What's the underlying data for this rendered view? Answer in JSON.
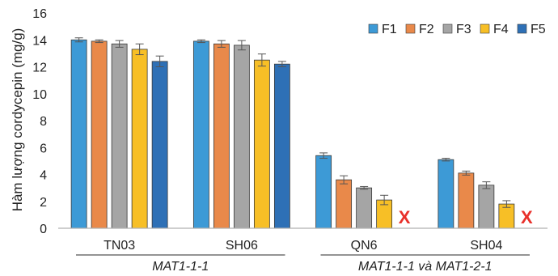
{
  "chart_data": {
    "type": "bar",
    "title": "",
    "xlabel": "",
    "ylabel": "Hàm lượng cordycepin (mg/g)",
    "ylim": [
      0,
      16
    ],
    "yticks": [
      0,
      2,
      4,
      6,
      8,
      10,
      12,
      14,
      16
    ],
    "grid": false,
    "legend_position": "top-right",
    "categories": [
      "TN03",
      "SH06",
      "QN6",
      "SH04"
    ],
    "groups": [
      {
        "label": "MAT1-1-1",
        "categories": [
          "TN03",
          "SH06"
        ]
      },
      {
        "label": "MAT1-1-1 và MAT1-2-1",
        "categories": [
          "QN6",
          "SH04"
        ]
      }
    ],
    "series": [
      {
        "name": "F1",
        "color": "#3d9ad6",
        "values": [
          14.0,
          13.9,
          5.4,
          5.1
        ],
        "errors": [
          0.15,
          0.1,
          0.2,
          0.1
        ]
      },
      {
        "name": "F2",
        "color": "#e9894a",
        "values": [
          13.9,
          13.7,
          3.6,
          4.1
        ],
        "errors": [
          0.1,
          0.25,
          0.3,
          0.15
        ]
      },
      {
        "name": "F3",
        "color": "#a5a5a5",
        "values": [
          13.7,
          13.6,
          3.0,
          3.2
        ],
        "errors": [
          0.25,
          0.35,
          0.1,
          0.25
        ]
      },
      {
        "name": "F4",
        "color": "#f7bf26",
        "values": [
          13.3,
          12.5,
          2.1,
          1.8
        ],
        "errors": [
          0.4,
          0.45,
          0.35,
          0.25
        ]
      },
      {
        "name": "F5",
        "color": "#2e70b6",
        "values": [
          12.4,
          12.2,
          null,
          null
        ],
        "errors": [
          0.4,
          0.2,
          null,
          null
        ]
      }
    ],
    "missing_marker": "X",
    "missing_marker_color": "#e8302a"
  }
}
